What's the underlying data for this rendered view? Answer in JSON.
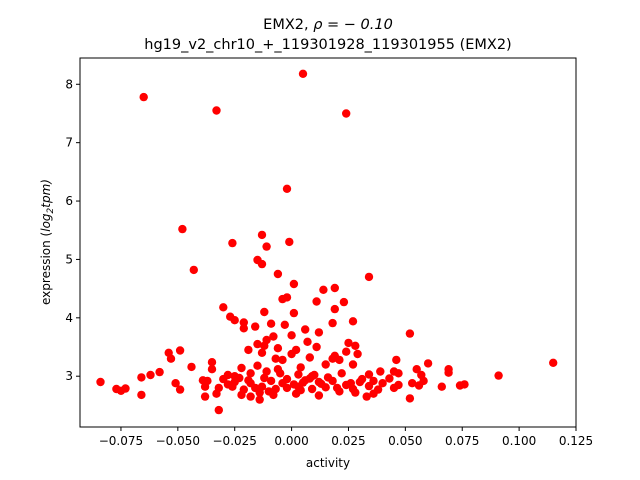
{
  "chart_data": {
    "type": "scatter",
    "title_line1_prefix": "EMX2, ",
    "title_line1_rho": "ρ = − 0.10",
    "title_line2": "hg19_v2_chr10_+_119301928_119301955 (EMX2)",
    "xlabel": "activity",
    "ylabel_prefix": "expression (",
    "ylabel_log": "log",
    "ylabel_sub": "2",
    "ylabel_suffix": "tpm)",
    "xlim": [
      -0.093,
      0.125
    ],
    "ylim": [
      2.13,
      8.45
    ],
    "xticks": [
      -0.075,
      -0.05,
      -0.025,
      0.0,
      0.025,
      0.05,
      0.075,
      0.1,
      0.125
    ],
    "xtick_labels": [
      "−0.075",
      "−0.050",
      "−0.025",
      "0.000",
      "0.025",
      "0.050",
      "0.075",
      "0.100",
      "0.125"
    ],
    "yticks": [
      3,
      4,
      5,
      6,
      7,
      8
    ],
    "ytick_labels": [
      "3",
      "4",
      "5",
      "6",
      "7",
      "8"
    ],
    "grid": false,
    "marker_color": "#ff0000",
    "points": [
      [
        0.005,
        8.18
      ],
      [
        -0.065,
        7.78
      ],
      [
        -0.033,
        7.55
      ],
      [
        0.024,
        7.5
      ],
      [
        -0.002,
        6.21
      ],
      [
        -0.048,
        5.52
      ],
      [
        -0.026,
        5.28
      ],
      [
        -0.013,
        5.42
      ],
      [
        -0.001,
        5.3
      ],
      [
        -0.011,
        5.22
      ],
      [
        -0.043,
        4.82
      ],
      [
        -0.015,
        4.99
      ],
      [
        -0.013,
        4.92
      ],
      [
        -0.006,
        4.75
      ],
      [
        0.034,
        4.7
      ],
      [
        0.001,
        4.58
      ],
      [
        0.014,
        4.48
      ],
      [
        0.019,
        4.51
      ],
      [
        -0.002,
        4.35
      ],
      [
        -0.004,
        4.32
      ],
      [
        0.011,
        4.28
      ],
      [
        0.023,
        4.27
      ],
      [
        -0.03,
        4.18
      ],
      [
        -0.012,
        4.1
      ],
      [
        0.019,
        4.15
      ],
      [
        0.001,
        4.08
      ],
      [
        -0.027,
        4.02
      ],
      [
        -0.025,
        3.96
      ],
      [
        -0.021,
        3.92
      ],
      [
        -0.009,
        3.9
      ],
      [
        0.027,
        3.94
      ],
      [
        0.018,
        3.91
      ],
      [
        -0.003,
        3.88
      ],
      [
        -0.016,
        3.85
      ],
      [
        -0.021,
        3.82
      ],
      [
        0.006,
        3.8
      ],
      [
        0.012,
        3.75
      ],
      [
        0.052,
        3.73
      ],
      [
        0.0,
        3.7
      ],
      [
        -0.008,
        3.68
      ],
      [
        -0.011,
        3.62
      ],
      [
        0.007,
        3.59
      ],
      [
        0.025,
        3.57
      ],
      [
        -0.015,
        3.55
      ],
      [
        -0.012,
        3.52
      ],
      [
        -0.006,
        3.48
      ],
      [
        0.011,
        3.5
      ],
      [
        0.002,
        3.45
      ],
      [
        0.028,
        3.52
      ],
      [
        0.024,
        3.42
      ],
      [
        -0.019,
        3.45
      ],
      [
        -0.049,
        3.44
      ],
      [
        -0.054,
        3.4
      ],
      [
        -0.013,
        3.4
      ],
      [
        0.0,
        3.38
      ],
      [
        0.019,
        3.35
      ],
      [
        0.029,
        3.38
      ],
      [
        0.008,
        3.32
      ],
      [
        -0.053,
        3.3
      ],
      [
        -0.035,
        3.24
      ],
      [
        -0.007,
        3.3
      ],
      [
        -0.004,
        3.28
      ],
      [
        0.018,
        3.3
      ],
      [
        0.021,
        3.28
      ],
      [
        0.046,
        3.28
      ],
      [
        0.06,
        3.22
      ],
      [
        0.115,
        3.23
      ],
      [
        -0.044,
        3.16
      ],
      [
        -0.035,
        3.12
      ],
      [
        -0.022,
        3.14
      ],
      [
        -0.015,
        3.18
      ],
      [
        0.004,
        3.15
      ],
      [
        0.015,
        3.2
      ],
      [
        0.027,
        3.2
      ],
      [
        0.039,
        3.08
      ],
      [
        0.055,
        3.12
      ],
      [
        0.069,
        3.12
      ],
      [
        -0.058,
        3.07
      ],
      [
        -0.062,
        3.02
      ],
      [
        -0.066,
        2.98
      ],
      [
        -0.028,
        3.02
      ],
      [
        -0.018,
        3.05
      ],
      [
        -0.011,
        3.08
      ],
      [
        -0.005,
        3.05
      ],
      [
        0.003,
        3.03
      ],
      [
        0.01,
        3.02
      ],
      [
        0.022,
        3.05
      ],
      [
        0.034,
        3.03
      ],
      [
        0.045,
        3.08
      ],
      [
        0.047,
        3.05
      ],
      [
        0.057,
        3.02
      ],
      [
        0.069,
        3.06
      ],
      [
        0.091,
        3.01
      ],
      [
        -0.084,
        2.9
      ],
      [
        -0.051,
        2.88
      ],
      [
        -0.037,
        2.92
      ],
      [
        -0.03,
        2.95
      ],
      [
        -0.025,
        2.9
      ],
      [
        -0.018,
        2.88
      ],
      [
        -0.009,
        2.92
      ],
      [
        -0.002,
        2.95
      ],
      [
        0.006,
        2.93
      ],
      [
        0.012,
        2.9
      ],
      [
        0.018,
        2.92
      ],
      [
        0.026,
        2.88
      ],
      [
        0.03,
        2.9
      ],
      [
        0.036,
        2.92
      ],
      [
        0.04,
        2.88
      ],
      [
        0.047,
        2.85
      ],
      [
        0.053,
        2.88
      ],
      [
        0.056,
        2.84
      ],
      [
        0.066,
        2.82
      ],
      [
        0.074,
        2.84
      ],
      [
        0.076,
        2.86
      ],
      [
        -0.077,
        2.78
      ],
      [
        -0.073,
        2.79
      ],
      [
        -0.049,
        2.77
      ],
      [
        -0.038,
        2.82
      ],
      [
        -0.032,
        2.8
      ],
      [
        -0.026,
        2.82
      ],
      [
        -0.021,
        2.77
      ],
      [
        -0.016,
        2.8
      ],
      [
        -0.013,
        2.82
      ],
      [
        -0.007,
        2.78
      ],
      [
        -0.002,
        2.8
      ],
      [
        0.003,
        2.82
      ],
      [
        0.009,
        2.78
      ],
      [
        0.015,
        2.81
      ],
      [
        0.02,
        2.8
      ],
      [
        0.027,
        2.78
      ],
      [
        0.034,
        2.83
      ],
      [
        0.038,
        2.77
      ],
      [
        -0.075,
        2.75
      ],
      [
        -0.066,
        2.68
      ],
      [
        -0.038,
        2.65
      ],
      [
        -0.033,
        2.7
      ],
      [
        -0.022,
        2.68
      ],
      [
        -0.018,
        2.65
      ],
      [
        -0.014,
        2.6
      ],
      [
        -0.008,
        2.68
      ],
      [
        0.002,
        2.7
      ],
      [
        0.012,
        2.67
      ],
      [
        0.028,
        2.72
      ],
      [
        0.033,
        2.65
      ],
      [
        0.052,
        2.62
      ],
      [
        -0.032,
        2.42
      ],
      [
        -0.039,
        2.93
      ],
      [
        -0.023,
        2.97
      ],
      [
        -0.012,
        2.97
      ],
      [
        0.008,
        2.96
      ],
      [
        0.016,
        2.98
      ],
      [
        0.024,
        2.85
      ],
      [
        0.043,
        2.96
      ],
      [
        -0.004,
        2.88
      ],
      [
        0.001,
        2.86
      ],
      [
        -0.028,
        2.86
      ],
      [
        -0.019,
        2.93
      ],
      [
        0.005,
        2.89
      ],
      [
        0.031,
        2.95
      ],
      [
        -0.01,
        2.74
      ],
      [
        0.021,
        2.74
      ],
      [
        -0.014,
        2.72
      ],
      [
        0.036,
        2.7
      ],
      [
        0.004,
        2.76
      ],
      [
        0.013,
        2.87
      ],
      [
        -0.025,
        3.0
      ],
      [
        0.009,
        3.0
      ],
      [
        0.045,
        2.8
      ],
      [
        0.058,
        2.92
      ],
      [
        -0.006,
        3.12
      ]
    ]
  }
}
